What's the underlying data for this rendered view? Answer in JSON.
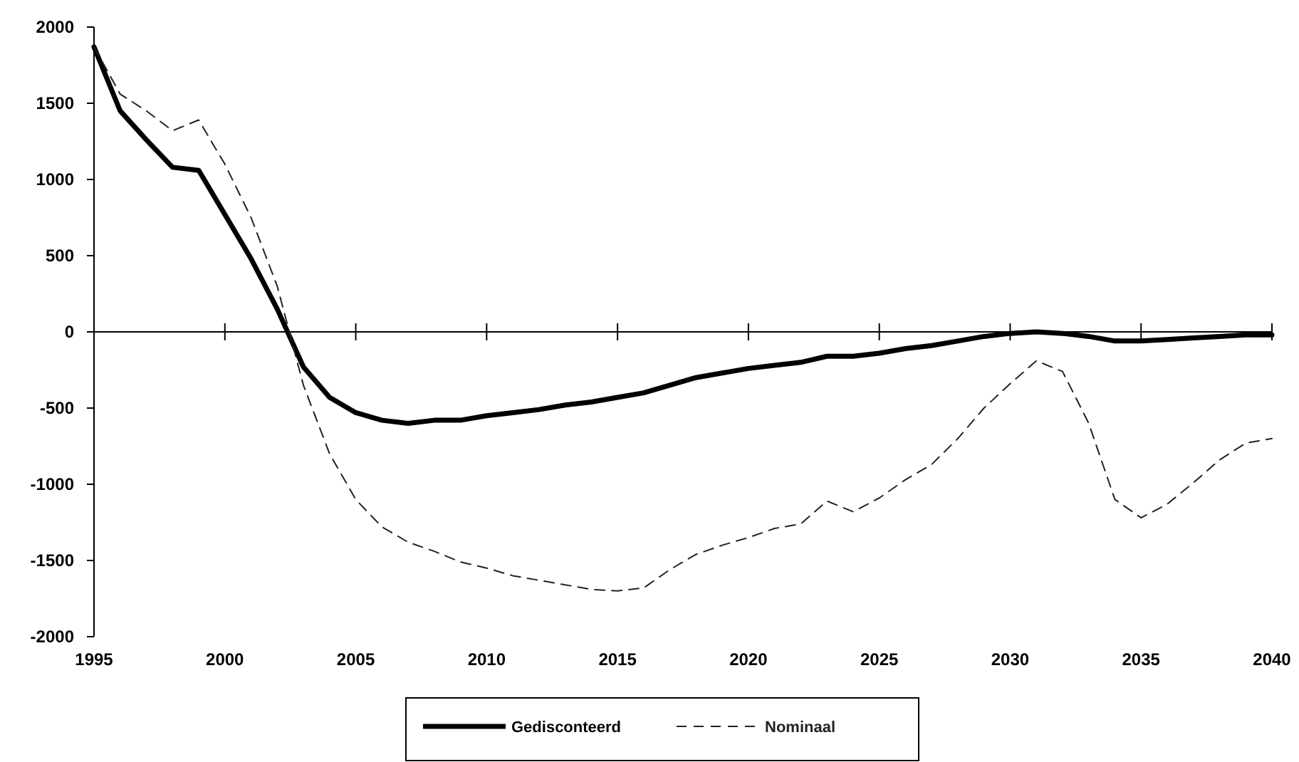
{
  "chart_data": {
    "type": "line",
    "x": [
      1995,
      1996,
      1997,
      1998,
      1999,
      2000,
      2001,
      2002,
      2003,
      2004,
      2005,
      2006,
      2007,
      2008,
      2009,
      2010,
      2011,
      2012,
      2013,
      2014,
      2015,
      2016,
      2017,
      2018,
      2019,
      2020,
      2021,
      2022,
      2023,
      2024,
      2025,
      2026,
      2027,
      2028,
      2029,
      2030,
      2031,
      2032,
      2033,
      2034,
      2035,
      2036,
      2037,
      2038,
      2039,
      2040
    ],
    "series": [
      {
        "name": "Gedisconteerd",
        "color": "#000000",
        "line_style": "solid",
        "values": [
          1870,
          1450,
          1260,
          1080,
          1060,
          770,
          480,
          150,
          -230,
          -430,
          -530,
          -580,
          -600,
          -580,
          -580,
          -550,
          -530,
          -510,
          -480,
          -460,
          -430,
          -400,
          -350,
          -300,
          -270,
          -240,
          -220,
          -200,
          -160,
          -160,
          -140,
          -110,
          -90,
          -60,
          -30,
          -10,
          0,
          -10,
          -30,
          -60,
          -60,
          -50,
          -40,
          -30,
          -20,
          -20
        ]
      },
      {
        "name": "Nominaal",
        "color": "#222222",
        "line_style": "dashed",
        "values": [
          1870,
          1560,
          1450,
          1320,
          1390,
          1100,
          750,
          300,
          -350,
          -800,
          -1100,
          -1280,
          -1380,
          -1440,
          -1510,
          -1550,
          -1600,
          -1630,
          -1660,
          -1690,
          -1700,
          -1680,
          -1560,
          -1460,
          -1400,
          -1350,
          -1290,
          -1260,
          -1110,
          -1180,
          -1090,
          -970,
          -870,
          -700,
          -500,
          -340,
          -190,
          -260,
          -600,
          -1100,
          -1220,
          -1130,
          -990,
          -840,
          -730,
          -700
        ]
      }
    ],
    "xlim": [
      1995,
      2040
    ],
    "xticks": [
      1995,
      2000,
      2005,
      2010,
      2015,
      2020,
      2025,
      2030,
      2035,
      2040
    ],
    "ylim": [
      -2000,
      2000
    ],
    "yticks": [
      -2000,
      -1500,
      -1000,
      -500,
      0,
      500,
      1000,
      1500,
      2000
    ],
    "legend": "bottom",
    "marker": "none"
  }
}
